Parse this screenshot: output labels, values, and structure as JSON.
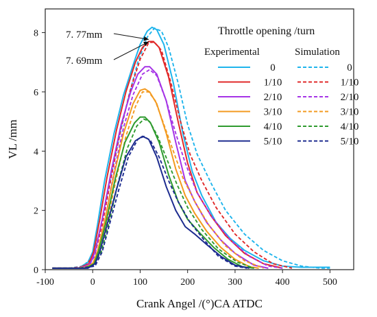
{
  "chart_data": {
    "type": "line",
    "xlabel": "Crank Angel /(°)CA ATDC",
    "ylabel": "VL /mm",
    "xlim": [
      -100,
      550
    ],
    "ylim": [
      0,
      8.8
    ],
    "xticks": [
      -100,
      0,
      100,
      200,
      300,
      400,
      500
    ],
    "yticks": [
      0,
      2,
      4,
      6,
      8
    ],
    "legend": {
      "title": "Throttle opening /turn",
      "experimental_header": "Experimental",
      "simulation_header": "Simulation",
      "position": "top-right"
    },
    "annotations": [
      {
        "text": "7. 77mm",
        "target_x": 118,
        "target_y": 7.77
      },
      {
        "text": "7. 69mm",
        "target_x": 118,
        "target_y": 7.69
      }
    ],
    "series": [
      {
        "name": "0",
        "color": "#1eb4ec",
        "experimental": [
          [
            -85,
            0.05
          ],
          [
            -30,
            0.05
          ],
          [
            -10,
            0.25
          ],
          [
            0,
            0.6
          ],
          [
            10,
            1.5
          ],
          [
            25,
            3.0
          ],
          [
            45,
            4.6
          ],
          [
            65,
            5.9
          ],
          [
            85,
            6.9
          ],
          [
            100,
            7.6
          ],
          [
            115,
            8.05
          ],
          [
            125,
            8.18
          ],
          [
            135,
            8.1
          ],
          [
            150,
            7.6
          ],
          [
            170,
            6.3
          ],
          [
            190,
            4.6
          ],
          [
            210,
            3.3
          ],
          [
            230,
            2.5
          ],
          [
            260,
            1.6
          ],
          [
            290,
            1.05
          ],
          [
            320,
            0.65
          ],
          [
            360,
            0.3
          ],
          [
            400,
            0.12
          ],
          [
            440,
            0.08
          ],
          [
            500,
            0.08
          ]
        ],
        "simulation": [
          [
            -85,
            0.05
          ],
          [
            -50,
            0.05
          ],
          [
            -20,
            0.12
          ],
          [
            0,
            0.45
          ],
          [
            15,
            1.3
          ],
          [
            35,
            2.9
          ],
          [
            55,
            4.4
          ],
          [
            75,
            5.8
          ],
          [
            95,
            7.0
          ],
          [
            115,
            7.85
          ],
          [
            130,
            8.15
          ],
          [
            145,
            8.05
          ],
          [
            160,
            7.5
          ],
          [
            180,
            6.3
          ],
          [
            200,
            4.9
          ],
          [
            220,
            3.9
          ],
          [
            250,
            2.9
          ],
          [
            280,
            2.0
          ],
          [
            320,
            1.2
          ],
          [
            360,
            0.65
          ],
          [
            400,
            0.3
          ],
          [
            440,
            0.12
          ],
          [
            480,
            0.05
          ],
          [
            500,
            0.05
          ]
        ]
      },
      {
        "name": "1/10",
        "color": "#e02828",
        "experimental": [
          [
            -85,
            0.05
          ],
          [
            -30,
            0.05
          ],
          [
            -8,
            0.2
          ],
          [
            2,
            0.6
          ],
          [
            15,
            1.7
          ],
          [
            30,
            3.1
          ],
          [
            50,
            4.7
          ],
          [
            70,
            6.0
          ],
          [
            90,
            7.0
          ],
          [
            105,
            7.5
          ],
          [
            118,
            7.7
          ],
          [
            128,
            7.7
          ],
          [
            140,
            7.5
          ],
          [
            160,
            6.5
          ],
          [
            180,
            5.0
          ],
          [
            200,
            3.6
          ],
          [
            220,
            2.6
          ],
          [
            250,
            1.8
          ],
          [
            280,
            1.15
          ],
          [
            320,
            0.55
          ],
          [
            360,
            0.2
          ],
          [
            400,
            0.05
          ]
        ],
        "simulation": [
          [
            -85,
            0.05
          ],
          [
            -45,
            0.05
          ],
          [
            -15,
            0.12
          ],
          [
            5,
            0.55
          ],
          [
            20,
            1.5
          ],
          [
            40,
            3.2
          ],
          [
            60,
            4.8
          ],
          [
            80,
            6.1
          ],
          [
            100,
            7.1
          ],
          [
            118,
            7.66
          ],
          [
            130,
            7.68
          ],
          [
            145,
            7.4
          ],
          [
            165,
            6.3
          ],
          [
            185,
            5.0
          ],
          [
            205,
            3.9
          ],
          [
            230,
            3.0
          ],
          [
            260,
            2.1
          ],
          [
            300,
            1.2
          ],
          [
            340,
            0.6
          ],
          [
            380,
            0.2
          ],
          [
            420,
            0.05
          ]
        ]
      },
      {
        "name": "2/10",
        "color": "#a533e6",
        "experimental": [
          [
            -85,
            0.05
          ],
          [
            -25,
            0.05
          ],
          [
            -5,
            0.2
          ],
          [
            5,
            0.6
          ],
          [
            20,
            1.7
          ],
          [
            40,
            3.4
          ],
          [
            60,
            4.9
          ],
          [
            80,
            6.0
          ],
          [
            95,
            6.6
          ],
          [
            110,
            6.85
          ],
          [
            120,
            6.85
          ],
          [
            135,
            6.6
          ],
          [
            155,
            5.7
          ],
          [
            175,
            4.3
          ],
          [
            195,
            3.0
          ],
          [
            215,
            2.3
          ],
          [
            240,
            1.6
          ],
          [
            270,
            1.0
          ],
          [
            300,
            0.55
          ],
          [
            340,
            0.15
          ],
          [
            370,
            0.05
          ]
        ],
        "simulation": [
          [
            -85,
            0.05
          ],
          [
            -40,
            0.05
          ],
          [
            -10,
            0.12
          ],
          [
            10,
            0.6
          ],
          [
            25,
            1.6
          ],
          [
            45,
            3.3
          ],
          [
            65,
            4.8
          ],
          [
            85,
            5.9
          ],
          [
            105,
            6.6
          ],
          [
            120,
            6.75
          ],
          [
            135,
            6.55
          ],
          [
            155,
            5.7
          ],
          [
            175,
            4.6
          ],
          [
            195,
            3.6
          ],
          [
            220,
            2.6
          ],
          [
            250,
            1.8
          ],
          [
            290,
            1.0
          ],
          [
            330,
            0.45
          ],
          [
            370,
            0.12
          ],
          [
            400,
            0.05
          ]
        ]
      },
      {
        "name": "3/10",
        "color": "#f39a1f",
        "experimental": [
          [
            -85,
            0.05
          ],
          [
            -20,
            0.05
          ],
          [
            0,
            0.2
          ],
          [
            10,
            0.6
          ],
          [
            25,
            1.6
          ],
          [
            45,
            3.2
          ],
          [
            65,
            4.6
          ],
          [
            85,
            5.6
          ],
          [
            100,
            6.05
          ],
          [
            110,
            6.1
          ],
          [
            120,
            6.0
          ],
          [
            135,
            5.6
          ],
          [
            155,
            4.6
          ],
          [
            175,
            3.4
          ],
          [
            195,
            2.5
          ],
          [
            215,
            1.9
          ],
          [
            240,
            1.3
          ],
          [
            270,
            0.75
          ],
          [
            300,
            0.35
          ],
          [
            330,
            0.1
          ],
          [
            350,
            0.05
          ]
        ],
        "simulation": [
          [
            -85,
            0.05
          ],
          [
            -35,
            0.05
          ],
          [
            -5,
            0.12
          ],
          [
            15,
            0.6
          ],
          [
            30,
            1.6
          ],
          [
            50,
            3.1
          ],
          [
            70,
            4.5
          ],
          [
            90,
            5.5
          ],
          [
            105,
            6.0
          ],
          [
            118,
            6.0
          ],
          [
            132,
            5.7
          ],
          [
            150,
            4.9
          ],
          [
            170,
            4.0
          ],
          [
            190,
            3.1
          ],
          [
            215,
            2.3
          ],
          [
            245,
            1.5
          ],
          [
            280,
            0.8
          ],
          [
            320,
            0.3
          ],
          [
            360,
            0.05
          ]
        ]
      },
      {
        "name": "4/10",
        "color": "#2e9a2e",
        "experimental": [
          [
            -85,
            0.05
          ],
          [
            -15,
            0.05
          ],
          [
            3,
            0.2
          ],
          [
            12,
            0.6
          ],
          [
            28,
            1.6
          ],
          [
            48,
            3.1
          ],
          [
            68,
            4.3
          ],
          [
            88,
            4.95
          ],
          [
            100,
            5.15
          ],
          [
            110,
            5.15
          ],
          [
            122,
            4.95
          ],
          [
            140,
            4.3
          ],
          [
            160,
            3.2
          ],
          [
            180,
            2.3
          ],
          [
            200,
            1.7
          ],
          [
            225,
            1.25
          ],
          [
            255,
            0.75
          ],
          [
            285,
            0.35
          ],
          [
            315,
            0.1
          ],
          [
            340,
            0.05
          ]
        ],
        "simulation": [
          [
            -85,
            0.05
          ],
          [
            -30,
            0.05
          ],
          [
            0,
            0.12
          ],
          [
            18,
            0.6
          ],
          [
            33,
            1.5
          ],
          [
            53,
            2.9
          ],
          [
            73,
            4.1
          ],
          [
            93,
            4.85
          ],
          [
            108,
            5.08
          ],
          [
            120,
            5.0
          ],
          [
            137,
            4.5
          ],
          [
            157,
            3.7
          ],
          [
            177,
            2.9
          ],
          [
            200,
            2.1
          ],
          [
            230,
            1.35
          ],
          [
            265,
            0.7
          ],
          [
            305,
            0.25
          ],
          [
            340,
            0.05
          ]
        ]
      },
      {
        "name": "5/10",
        "color": "#1c2b8f",
        "experimental": [
          [
            -85,
            0.05
          ],
          [
            -10,
            0.05
          ],
          [
            5,
            0.2
          ],
          [
            15,
            0.6
          ],
          [
            30,
            1.5
          ],
          [
            50,
            2.7
          ],
          [
            70,
            3.8
          ],
          [
            90,
            4.35
          ],
          [
            105,
            4.5
          ],
          [
            118,
            4.4
          ],
          [
            135,
            3.8
          ],
          [
            155,
            2.8
          ],
          [
            175,
            2.0
          ],
          [
            195,
            1.45
          ],
          [
            215,
            1.2
          ],
          [
            240,
            0.85
          ],
          [
            270,
            0.45
          ],
          [
            300,
            0.15
          ],
          [
            330,
            0.05
          ]
        ],
        "simulation": [
          [
            -85,
            0.05
          ],
          [
            -25,
            0.05
          ],
          [
            5,
            0.12
          ],
          [
            20,
            0.6
          ],
          [
            35,
            1.5
          ],
          [
            55,
            2.7
          ],
          [
            75,
            3.8
          ],
          [
            95,
            4.4
          ],
          [
            108,
            4.5
          ],
          [
            122,
            4.35
          ],
          [
            140,
            3.8
          ],
          [
            160,
            3.0
          ],
          [
            180,
            2.3
          ],
          [
            205,
            1.6
          ],
          [
            235,
            1.0
          ],
          [
            265,
            0.45
          ],
          [
            300,
            0.12
          ],
          [
            325,
            0.05
          ]
        ]
      }
    ]
  }
}
